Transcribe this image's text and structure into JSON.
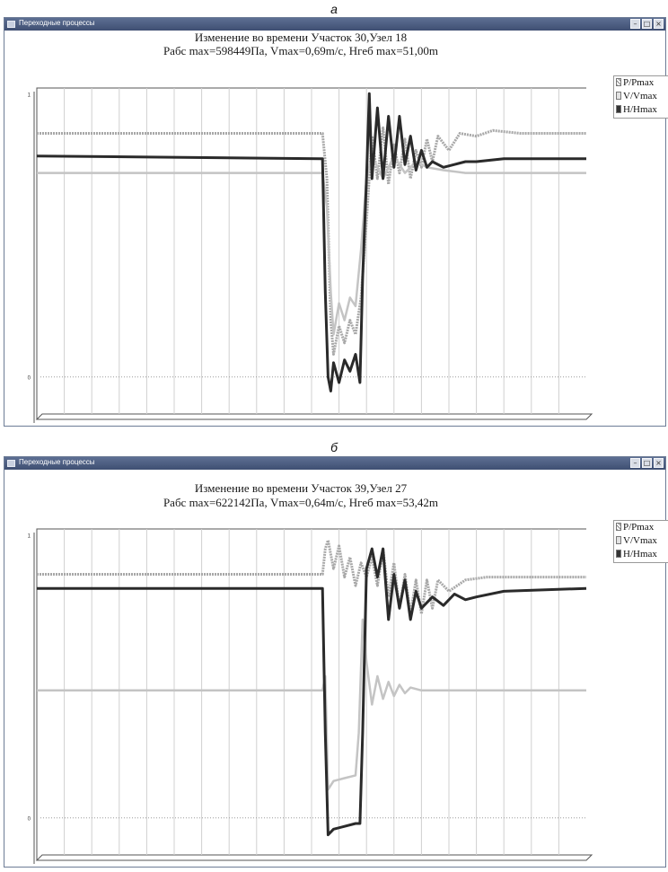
{
  "panels": [
    {
      "letter": "а",
      "window_title": "Переходные процессы",
      "title_line1": "Изменение во времени Участок 30,Узел 18",
      "title_line2": "Рабс max=598449Па, Vmax=0,69m/c, Hгеб max=51,00m",
      "legend": [
        {
          "label": "P/Pmax",
          "icon": "hatched-swatch-icon"
        },
        {
          "label": "V/Vmax",
          "icon": "light-swatch-icon"
        },
        {
          "label": "H/Hmax",
          "icon": "dark-swatch-icon"
        }
      ],
      "window_buttons": [
        "minimize-icon",
        "maximize-icon",
        "close-icon"
      ]
    },
    {
      "letter": "б",
      "window_title": "Переходные процессы",
      "title_line1": "Изменение во времени Участок 39,Узел 27",
      "title_line2": "Рабс max=622142Па, Vmax=0,64m/c, Hгеб max=53,42m",
      "legend": [
        {
          "label": "P/Pmax",
          "icon": "hatched-swatch-icon"
        },
        {
          "label": "V/Vmax",
          "icon": "light-swatch-icon"
        },
        {
          "label": "H/Hmax",
          "icon": "dark-swatch-icon"
        }
      ],
      "window_buttons": [
        "minimize-icon",
        "maximize-icon",
        "close-icon"
      ]
    }
  ],
  "colors": {
    "P": "#a8a8a8",
    "V": "#c4c4c4",
    "H": "#2a2a2a",
    "grid": "#d0d0d0",
    "frame": "#555555"
  },
  "chart_data": [
    {
      "type": "line",
      "title": "Изменение во времени Участок 30,Узел 18",
      "subtitle": "Рабс max=598449Па, Vmax=0,69m/c, Hгеб max=51,00m",
      "xlim": [
        0,
        100
      ],
      "ylim": [
        -0.15,
        1.02
      ],
      "x_ticks": [
        5,
        10,
        15,
        20,
        25,
        30,
        35,
        40,
        45,
        50,
        55,
        60,
        65,
        70,
        75,
        80,
        85,
        90,
        95
      ],
      "y_ticks": [
        {
          "v": 0,
          "label": "0"
        },
        {
          "v": 1,
          "label": "1"
        }
      ],
      "grid": true,
      "legend_position": "right",
      "series": [
        {
          "name": "P/Pmax",
          "key": "P",
          "points": [
            [
              0,
              0.86
            ],
            [
              52,
              0.86
            ],
            [
              52.8,
              0.7
            ],
            [
              53.5,
              0.2
            ],
            [
              54,
              0.08
            ],
            [
              55,
              0.18
            ],
            [
              56,
              0.12
            ],
            [
              57,
              0.2
            ],
            [
              58,
              0.15
            ],
            [
              59,
              0.28
            ],
            [
              60,
              0.55
            ],
            [
              61,
              0.85
            ],
            [
              62,
              0.7
            ],
            [
              63,
              0.88
            ],
            [
              64,
              0.68
            ],
            [
              65,
              0.82
            ],
            [
              66,
              0.72
            ],
            [
              67,
              0.84
            ],
            [
              68,
              0.7
            ],
            [
              69,
              0.8
            ],
            [
              70,
              0.74
            ],
            [
              71,
              0.84
            ],
            [
              72,
              0.76
            ],
            [
              73,
              0.85
            ],
            [
              75,
              0.8
            ],
            [
              77,
              0.86
            ],
            [
              80,
              0.85
            ],
            [
              83,
              0.87
            ],
            [
              88,
              0.86
            ],
            [
              100,
              0.86
            ]
          ]
        },
        {
          "name": "V/Vmax",
          "key": "V",
          "points": [
            [
              0,
              0.72
            ],
            [
              52,
              0.72
            ],
            [
              52.8,
              0.6
            ],
            [
              53.5,
              0.3
            ],
            [
              54,
              0.15
            ],
            [
              55,
              0.26
            ],
            [
              56,
              0.2
            ],
            [
              57,
              0.28
            ],
            [
              58,
              0.25
            ],
            [
              59,
              0.45
            ],
            [
              60,
              0.7
            ],
            [
              61,
              0.78
            ],
            [
              63,
              0.7
            ],
            [
              65,
              0.78
            ],
            [
              67,
              0.72
            ],
            [
              69,
              0.76
            ],
            [
              71,
              0.74
            ],
            [
              74,
              0.73
            ],
            [
              78,
              0.72
            ],
            [
              100,
              0.72
            ]
          ]
        },
        {
          "name": "H/Hmax",
          "key": "H",
          "points": [
            [
              0,
              0.78
            ],
            [
              51.5,
              0.77
            ],
            [
              52,
              0.77
            ],
            [
              52.5,
              0.3
            ],
            [
              53,
              0.0
            ],
            [
              53.5,
              -0.05
            ],
            [
              54,
              0.05
            ],
            [
              55,
              -0.02
            ],
            [
              56,
              0.06
            ],
            [
              57,
              0.02
            ],
            [
              58,
              0.08
            ],
            [
              58.8,
              -0.02
            ],
            [
              59.3,
              0.35
            ],
            [
              60,
              0.7
            ],
            [
              60.5,
              1.0
            ],
            [
              61,
              0.7
            ],
            [
              62,
              0.95
            ],
            [
              63,
              0.7
            ],
            [
              64,
              0.92
            ],
            [
              65,
              0.74
            ],
            [
              66,
              0.92
            ],
            [
              67,
              0.75
            ],
            [
              68,
              0.85
            ],
            [
              69,
              0.73
            ],
            [
              70,
              0.8
            ],
            [
              71,
              0.74
            ],
            [
              72,
              0.76
            ],
            [
              74,
              0.74
            ],
            [
              76,
              0.75
            ],
            [
              78,
              0.76
            ],
            [
              80,
              0.76
            ],
            [
              85,
              0.77
            ],
            [
              100,
              0.77
            ]
          ]
        }
      ]
    },
    {
      "type": "line",
      "title": "Изменение во времени Участок 39,Узел 27",
      "subtitle": "Рабс max=622142Па, Vmax=0,64m/c, Hгеб max=53,42m",
      "xlim": [
        0,
        100
      ],
      "ylim": [
        -0.15,
        1.02
      ],
      "x_ticks": [
        5,
        10,
        15,
        20,
        25,
        30,
        35,
        40,
        45,
        50,
        55,
        60,
        65,
        70,
        75,
        80,
        85,
        90,
        95
      ],
      "y_ticks": [
        {
          "v": 0,
          "label": "0"
        },
        {
          "v": 1,
          "label": "1"
        }
      ],
      "grid": true,
      "legend_position": "right",
      "series": [
        {
          "name": "P/Pmax",
          "key": "P",
          "points": [
            [
              0,
              0.86
            ],
            [
              52,
              0.86
            ],
            [
              52.5,
              0.95
            ],
            [
              53,
              0.98
            ],
            [
              54,
              0.88
            ],
            [
              55,
              0.96
            ],
            [
              56,
              0.85
            ],
            [
              57,
              0.92
            ],
            [
              58,
              0.82
            ],
            [
              59,
              0.9
            ],
            [
              60,
              0.85
            ],
            [
              61,
              0.92
            ],
            [
              62,
              0.82
            ],
            [
              63,
              0.95
            ],
            [
              64,
              0.78
            ],
            [
              65,
              0.9
            ],
            [
              66,
              0.74
            ],
            [
              67,
              0.86
            ],
            [
              68,
              0.72
            ],
            [
              69,
              0.84
            ],
            [
              70,
              0.72
            ],
            [
              71,
              0.84
            ],
            [
              72,
              0.74
            ],
            [
              73,
              0.84
            ],
            [
              75,
              0.8
            ],
            [
              78,
              0.84
            ],
            [
              82,
              0.85
            ],
            [
              88,
              0.85
            ],
            [
              100,
              0.85
            ]
          ]
        },
        {
          "name": "V/Vmax",
          "key": "V",
          "points": [
            [
              0,
              0.45
            ],
            [
              52,
              0.45
            ],
            [
              52.5,
              0.5
            ],
            [
              53,
              0.1
            ],
            [
              54,
              0.13
            ],
            [
              56,
              0.14
            ],
            [
              58,
              0.15
            ],
            [
              58.6,
              0.3
            ],
            [
              59.3,
              0.7
            ],
            [
              60,
              0.55
            ],
            [
              61,
              0.4
            ],
            [
              62,
              0.5
            ],
            [
              63,
              0.42
            ],
            [
              64,
              0.48
            ],
            [
              65,
              0.43
            ],
            [
              66,
              0.47
            ],
            [
              67,
              0.44
            ],
            [
              68,
              0.46
            ],
            [
              70,
              0.45
            ],
            [
              74,
              0.45
            ],
            [
              100,
              0.45
            ]
          ]
        },
        {
          "name": "H/Hmax",
          "key": "H",
          "points": [
            [
              0,
              0.81
            ],
            [
              52,
              0.81
            ],
            [
              52.5,
              0.3
            ],
            [
              53,
              -0.06
            ],
            [
              54,
              -0.04
            ],
            [
              56,
              -0.03
            ],
            [
              58,
              -0.02
            ],
            [
              58.8,
              -0.02
            ],
            [
              59.3,
              0.3
            ],
            [
              60,
              0.88
            ],
            [
              61,
              0.95
            ],
            [
              62,
              0.85
            ],
            [
              63,
              0.95
            ],
            [
              64,
              0.7
            ],
            [
              65,
              0.86
            ],
            [
              66,
              0.74
            ],
            [
              67,
              0.84
            ],
            [
              68,
              0.7
            ],
            [
              69,
              0.8
            ],
            [
              70,
              0.74
            ],
            [
              72,
              0.78
            ],
            [
              74,
              0.75
            ],
            [
              76,
              0.79
            ],
            [
              78,
              0.77
            ],
            [
              80,
              0.78
            ],
            [
              85,
              0.8
            ],
            [
              100,
              0.81
            ]
          ]
        }
      ]
    }
  ]
}
